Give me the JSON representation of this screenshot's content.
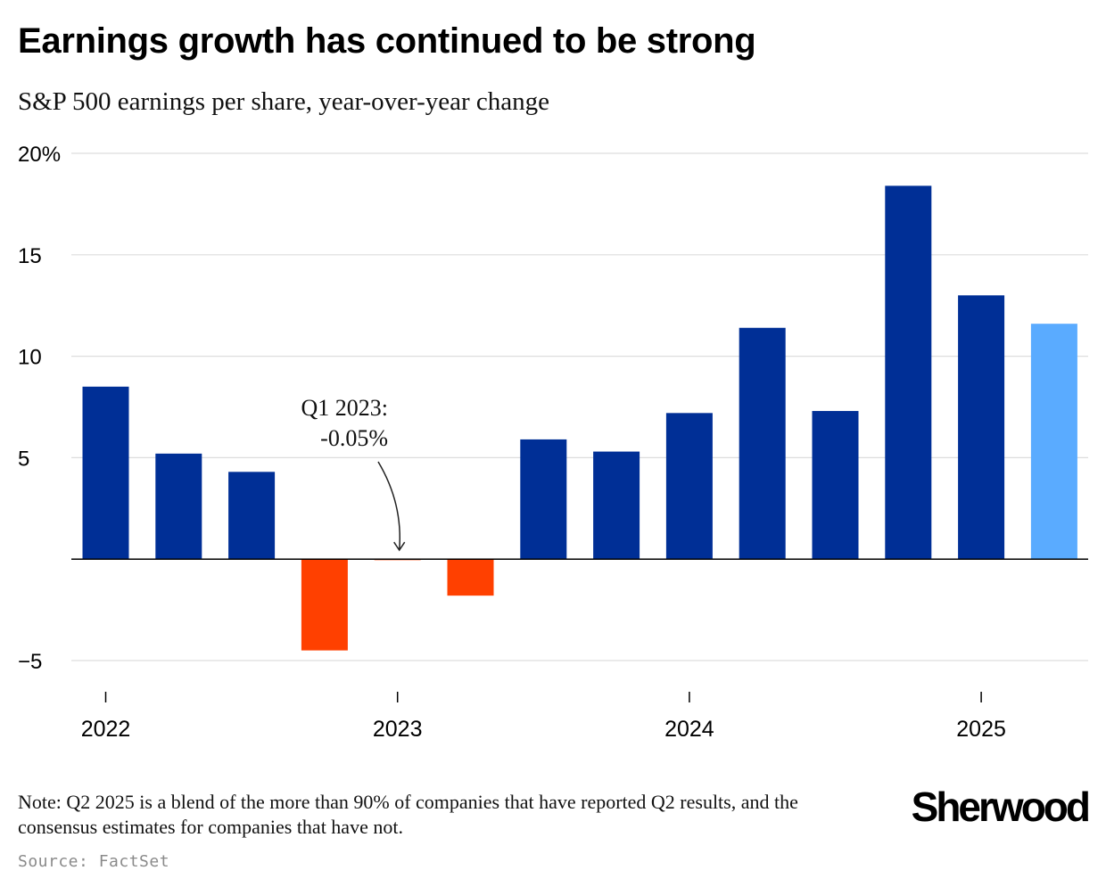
{
  "title": "Earnings growth has continued to be strong",
  "subtitle": "S&P 500 earnings per share, year-over-year change",
  "note": "Note: Q2 2025 is a blend of the more than 90% of companies that have reported Q2 results, and the consensus estimates for companies that have not.",
  "source": "Source: FactSet",
  "brand": "Sherwood",
  "chart_data": {
    "type": "bar",
    "categories": [
      "Q1 2022",
      "Q2 2022",
      "Q3 2022",
      "Q4 2022",
      "Q1 2023",
      "Q2 2023",
      "Q3 2023",
      "Q4 2023",
      "Q1 2024",
      "Q2 2024",
      "Q3 2024",
      "Q4 2024",
      "Q1 2025",
      "Q2 2025"
    ],
    "values": [
      8.5,
      5.2,
      4.3,
      -4.5,
      -0.05,
      -1.8,
      5.9,
      5.3,
      7.2,
      11.4,
      7.3,
      18.4,
      13.0,
      11.6
    ],
    "bar_colors": [
      "#002f96",
      "#002f96",
      "#002f96",
      "#ff4000",
      "#ff4000",
      "#ff4000",
      "#002f96",
      "#002f96",
      "#002f96",
      "#002f96",
      "#002f96",
      "#002f96",
      "#002f96",
      "#5aabff"
    ],
    "ylim": [
      -7,
      20
    ],
    "y_ticks": [
      {
        "value": 20,
        "label": "20%"
      },
      {
        "value": 15,
        "label": "15"
      },
      {
        "value": 10,
        "label": "10"
      },
      {
        "value": 5,
        "label": "5"
      },
      {
        "value": -5,
        "label": "−5"
      }
    ],
    "x_ticks": [
      {
        "index": 0,
        "label": "2022"
      },
      {
        "index": 4,
        "label": "2023"
      },
      {
        "index": 8,
        "label": "2024"
      },
      {
        "index": 12,
        "label": "2025"
      }
    ],
    "annotation": {
      "index": 4,
      "lines": [
        "Q1 2023:",
        "-0.05%"
      ]
    },
    "grid": true,
    "colors": {
      "positive": "#002f96",
      "negative": "#ff4000",
      "estimate": "#5aabff",
      "grid": "#dddddd",
      "zero_line": "#000000"
    }
  }
}
